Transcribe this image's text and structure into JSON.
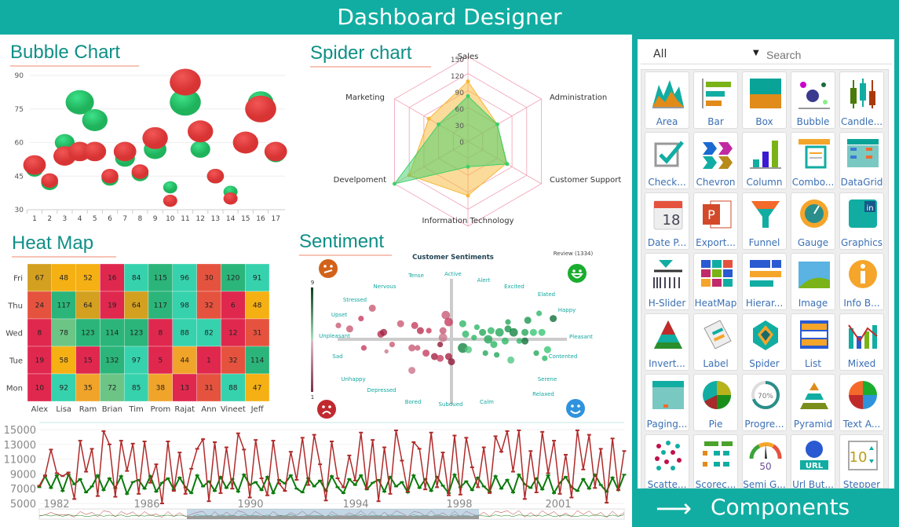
{
  "header": {
    "title": "Dashboard Designer"
  },
  "bubble": {
    "title": "Bubble Chart"
  },
  "spider": {
    "title": "Spider chart"
  },
  "heatmap": {
    "title": "Heat Map"
  },
  "sentiment": {
    "title": "Sentiment"
  },
  "colors": {
    "teal": "#12ada2",
    "green": "#2ecc71",
    "red": "#e84545",
    "darkred": "#a52a2a",
    "darkgreen": "#0b7a0b"
  },
  "chart_data": [
    {
      "type": "scatter",
      "name": "bubble",
      "ylim": [
        30,
        90
      ],
      "yticks": [
        30,
        45,
        60,
        75,
        90
      ],
      "x": [
        1,
        2,
        3,
        4,
        5,
        6,
        7,
        8,
        9,
        10,
        11,
        12,
        13,
        14,
        15,
        16,
        17
      ],
      "series": [
        {
          "color": "#2ecc71",
          "y": [
            48,
            42,
            60,
            78,
            70,
            44,
            53,
            46,
            57,
            40,
            78,
            57,
            45,
            38,
            59,
            78,
            55
          ],
          "size": [
            3,
            3,
            3.5,
            5,
            4.5,
            3,
            3.5,
            3,
            4,
            2.5,
            5.5,
            3.5,
            3,
            2.5,
            3.5,
            4.5,
            3.5
          ]
        },
        {
          "color": "#e84545",
          "y": [
            50,
            43,
            54,
            56,
            56,
            45,
            56,
            47,
            62,
            34,
            87,
            65,
            45,
            35,
            60,
            75,
            56
          ],
          "size": [
            4,
            3,
            4,
            4,
            4,
            3,
            4,
            3,
            4.5,
            2.5,
            5.5,
            4.5,
            3,
            2.5,
            4.5,
            5.5,
            4
          ]
        }
      ]
    },
    {
      "type": "radar",
      "name": "spider",
      "axes": [
        "Sales",
        "Administration",
        "Customer Support",
        "Information Technology",
        "Develpoment",
        "Marketing"
      ],
      "rlim": [
        0,
        150
      ],
      "ticks": [
        0,
        30,
        60,
        90,
        120,
        150
      ],
      "series": [
        {
          "color": "#f7b733",
          "values": [
            106,
            60,
            78,
            96,
            120,
            80
          ]
        },
        {
          "color": "#3fcf6a",
          "values": [
            80,
            60,
            80,
            45,
            150,
            60
          ]
        }
      ]
    },
    {
      "type": "heatmap",
      "name": "heatmap",
      "rows": [
        "Fri",
        "Thu",
        "Wed",
        "Tue",
        "Mon"
      ],
      "columns": [
        "Alex",
        "Lisa",
        "Ram",
        "Brian",
        "Tim",
        "Prom",
        "Rajat",
        "Ann",
        "Vineet",
        "Jeff"
      ],
      "values": [
        [
          67,
          48,
          52,
          16,
          84,
          115,
          96,
          30,
          120,
          91
        ],
        [
          24,
          117,
          64,
          19,
          64,
          117,
          98,
          32,
          6,
          48
        ],
        [
          8,
          78,
          123,
          114,
          123,
          8,
          88,
          82,
          12,
          31
        ],
        [
          19,
          58,
          15,
          132,
          97,
          5,
          44,
          1,
          32,
          114
        ],
        [
          10,
          92,
          35,
          72,
          85,
          38,
          13,
          31,
          88,
          47
        ]
      ]
    },
    {
      "type": "scatter",
      "name": "sentiment",
      "title": "Customer Sentiments",
      "review": "Review (1334)",
      "colorbar": {
        "max": "9",
        "min": "1"
      },
      "labels": [
        "Active",
        "Alert",
        "Excited",
        "Elated",
        "Happy",
        "Pleasant",
        "Contented",
        "Serene",
        "Relaxed",
        "Calm",
        "Subdued",
        "Bored",
        "Depressed",
        "Unhappy",
        "Sad",
        "Unpleasant",
        "Upset",
        "Stressed",
        "Nervous",
        "Tense"
      ],
      "points": [
        [
          -4,
          0.8,
          4,
          3
        ],
        [
          -3.6,
          0.6,
          5,
          3
        ],
        [
          -3.2,
          1.2,
          4,
          4
        ],
        [
          -2.8,
          1.8,
          5,
          3
        ],
        [
          -2.5,
          0.3,
          5,
          5
        ],
        [
          -2.4,
          0.4,
          5,
          6
        ],
        [
          -2.1,
          -0.3,
          4,
          3
        ],
        [
          -3.1,
          -0.5,
          4,
          4
        ],
        [
          -2.3,
          -0.7,
          3,
          2
        ],
        [
          -1.8,
          0.9,
          5,
          3
        ],
        [
          -1.4,
          -0.5,
          5,
          3
        ],
        [
          -1.2,
          -0.5,
          4,
          3
        ],
        [
          -1.3,
          0.8,
          5,
          4
        ],
        [
          -1.1,
          0.5,
          5,
          5
        ],
        [
          -0.8,
          0.5,
          4,
          4
        ],
        [
          -0.9,
          -0.8,
          5,
          4
        ],
        [
          -0.6,
          -1,
          5,
          6
        ],
        [
          -0.4,
          -1.1,
          5,
          4
        ],
        [
          -1.4,
          -1.8,
          5,
          2
        ],
        [
          -0.3,
          0.1,
          6,
          2
        ],
        [
          -0.3,
          0.5,
          5,
          3
        ],
        [
          -0.2,
          1.4,
          6,
          3
        ],
        [
          -0.1,
          1,
          6,
          4
        ],
        [
          -0.4,
          -0.3,
          4,
          7
        ],
        [
          -0.1,
          -1,
          5,
          6
        ],
        [
          0,
          -1.3,
          5,
          7
        ],
        [
          0.4,
          0.9,
          5,
          5
        ],
        [
          0.5,
          0.3,
          5,
          5
        ],
        [
          0.4,
          -0.5,
          7,
          8
        ],
        [
          0.6,
          -0.6,
          5,
          3
        ],
        [
          0.8,
          0.1,
          4,
          5
        ],
        [
          0.9,
          0.7,
          4,
          5
        ],
        [
          1.1,
          0.4,
          5,
          6
        ],
        [
          1.2,
          -0.8,
          4,
          6
        ],
        [
          1.3,
          0,
          6,
          6
        ],
        [
          1.4,
          0.5,
          5,
          5
        ],
        [
          1.5,
          -0.3,
          5,
          5
        ],
        [
          1.6,
          -0.9,
          4,
          6
        ],
        [
          1.7,
          0.4,
          6,
          6
        ],
        [
          1.9,
          -0.1,
          5,
          5
        ],
        [
          2,
          1,
          4,
          6
        ],
        [
          2,
          0.6,
          5,
          7
        ],
        [
          2.1,
          -1.2,
          5,
          3
        ],
        [
          2.2,
          0.4,
          6,
          8
        ],
        [
          2.4,
          -0.1,
          4,
          5
        ],
        [
          2.6,
          0.4,
          5,
          6
        ],
        [
          2.6,
          -0.1,
          5,
          9
        ],
        [
          2.7,
          1.1,
          5,
          7
        ],
        [
          2.9,
          0.4,
          5,
          4
        ],
        [
          3,
          -0.8,
          4,
          6
        ],
        [
          3.1,
          1.5,
          4,
          5
        ],
        [
          3.2,
          0.4,
          5,
          4
        ],
        [
          3.4,
          -0.6,
          5,
          4
        ],
        [
          3.6,
          1.2,
          5,
          9
        ],
        [
          3.3,
          -1.1,
          4,
          5
        ]
      ]
    },
    {
      "type": "line",
      "name": "timeseries",
      "ylim": [
        5000,
        15000
      ],
      "yticks": [
        5000,
        7000,
        9000,
        11000,
        13000,
        15000
      ],
      "xticks": [
        "1982",
        "1986",
        "1990",
        "1994",
        "1998",
        "2001"
      ],
      "series": [
        {
          "color": "#b02a2a",
          "values": [
            7400,
            8800,
            12300,
            9100,
            8700,
            9200,
            5600,
            13500,
            9300,
            12400,
            6000,
            14800,
            13000,
            5900,
            13500,
            9400,
            13100,
            6300,
            13400,
            7800,
            10300,
            5000,
            13400,
            6700,
            11900,
            6300,
            9700,
            12400,
            13700,
            5300,
            13300,
            6400,
            12600,
            7000,
            14500,
            12300,
            5800,
            13600,
            8400,
            6100,
            13500,
            7700,
            6700,
            12000,
            8200,
            13900,
            7500,
            14300,
            10300,
            5400,
            13400,
            8400,
            7200,
            11500,
            8100,
            14600,
            7000,
            13600,
            5300,
            12600,
            6300,
            14900,
            10800,
            6600,
            13300,
            12400,
            6900,
            14600,
            7200,
            11900,
            6100,
            14200,
            6200,
            13900,
            9900,
            7200,
            12600,
            6400,
            14100,
            12000,
            14800,
            9300,
            14900,
            5600,
            12100,
            6500,
            14700,
            9100,
            13500,
            6300,
            11600,
            5800,
            14900,
            9600,
            14300,
            7100,
            12400,
            5100,
            13800,
            6800,
            12100
          ]
        },
        {
          "color": "#0b7a0b",
          "values": [
            7200,
            8700,
            7100,
            8800,
            6700,
            8900,
            7600,
            8300,
            6500,
            7300,
            8800,
            6800,
            8400,
            7100,
            8700,
            6300,
            7900,
            8200,
            7000,
            8700,
            6600,
            7800,
            8400,
            6900,
            8500,
            7200,
            6400,
            8800,
            7300,
            8000,
            6700,
            8600,
            7100,
            8300,
            6600,
            8900,
            7500,
            7900,
            6800,
            8600,
            6400,
            8200,
            7700,
            8800,
            7000,
            6500,
            8400,
            7300,
            8100,
            6700,
            8700,
            7200,
            6400,
            8300,
            7500,
            8800,
            6900,
            7800,
            8200,
            6600,
            8600,
            7300,
            7900,
            6500,
            8800,
            7100,
            8300,
            6700,
            8600,
            7400,
            6400,
            8900,
            7200,
            8000,
            6800,
            8500,
            7300,
            6600,
            8700,
            7000,
            8200,
            6500,
            8900,
            7600,
            7100,
            8400,
            6900,
            8800,
            6400,
            7800,
            8600,
            7200,
            6700,
            8300,
            7000,
            8900,
            7500,
            6600,
            8500,
            6800,
            8900
          ]
        }
      ]
    }
  ],
  "panel": {
    "filter": "All",
    "search_placeholder": "Search",
    "components_label": "Components",
    "items": [
      {
        "label": "Area",
        "icon": "area"
      },
      {
        "label": "Bar",
        "icon": "bar"
      },
      {
        "label": "Box",
        "icon": "box"
      },
      {
        "label": "Bubble",
        "icon": "bubble"
      },
      {
        "label": "Candle...",
        "icon": "candle"
      },
      {
        "label": "Check...",
        "icon": "check"
      },
      {
        "label": "Chevron",
        "icon": "chevron"
      },
      {
        "label": "Column",
        "icon": "column"
      },
      {
        "label": "Combo...",
        "icon": "combo"
      },
      {
        "label": "DataGrid",
        "icon": "datagrid"
      },
      {
        "label": "Date P...",
        "icon": "calendar"
      },
      {
        "label": "Export...",
        "icon": "powerpoint"
      },
      {
        "label": "Funnel",
        "icon": "funnel"
      },
      {
        "label": "Gauge",
        "icon": "gauge"
      },
      {
        "label": "Graphics",
        "icon": "graphics"
      },
      {
        "label": "H-Slider",
        "icon": "hslider"
      },
      {
        "label": "HeatMap",
        "icon": "heatmap"
      },
      {
        "label": "Hierar...",
        "icon": "hierarchy"
      },
      {
        "label": "Image",
        "icon": "image"
      },
      {
        "label": "Info B...",
        "icon": "info"
      },
      {
        "label": "Invert...",
        "icon": "inverted-pyramid"
      },
      {
        "label": "Label",
        "icon": "label"
      },
      {
        "label": "Spider",
        "icon": "spider"
      },
      {
        "label": "List",
        "icon": "list"
      },
      {
        "label": "Mixed",
        "icon": "mixed"
      },
      {
        "label": "Paging...",
        "icon": "paging"
      },
      {
        "label": "Pie",
        "icon": "pie"
      },
      {
        "label": "Progre...",
        "icon": "progress",
        "text": "70%"
      },
      {
        "label": "Pyramid",
        "icon": "pyramid"
      },
      {
        "label": "Text A...",
        "icon": "text-analytics"
      },
      {
        "label": "Scatte...",
        "icon": "scatter"
      },
      {
        "label": "Scorec...",
        "icon": "scorecard"
      },
      {
        "label": "Semi G...",
        "icon": "semi-gauge",
        "text": "50"
      },
      {
        "label": "Url But...",
        "icon": "url",
        "text": "URL"
      },
      {
        "label": "Stepper",
        "icon": "stepper",
        "text": "10"
      }
    ]
  }
}
